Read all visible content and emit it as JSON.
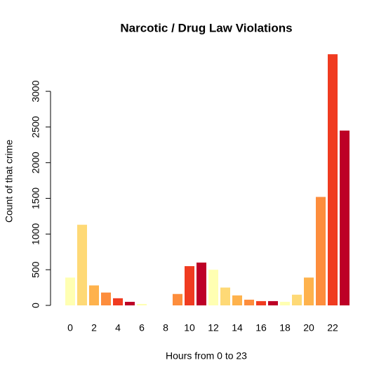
{
  "chart_data": {
    "type": "bar",
    "title": "Narcotic / Drug Law Violations",
    "xlabel": "Hours from 0 to 23",
    "ylabel": "Count of that crime",
    "categories": [
      "0",
      null,
      "2",
      null,
      "4",
      null,
      "6",
      null,
      "8",
      null,
      "10",
      null,
      "12",
      null,
      "14",
      null,
      "16",
      null,
      "18",
      null,
      "20",
      null,
      "22",
      null
    ],
    "values": [
      390,
      1130,
      280,
      180,
      100,
      50,
      20,
      0,
      0,
      160,
      550,
      600,
      500,
      250,
      140,
      80,
      60,
      60,
      50,
      150,
      390,
      1520,
      3520,
      2450
    ],
    "colors": [
      "#FFFFB2",
      "#FED976",
      "#FEB24C",
      "#FD8D3C",
      "#F03B20",
      "#BD0026"
    ],
    "ylim": [
      0,
      3660
    ],
    "yticks": [
      0,
      500,
      1000,
      1500,
      2000,
      2500,
      3000
    ]
  }
}
